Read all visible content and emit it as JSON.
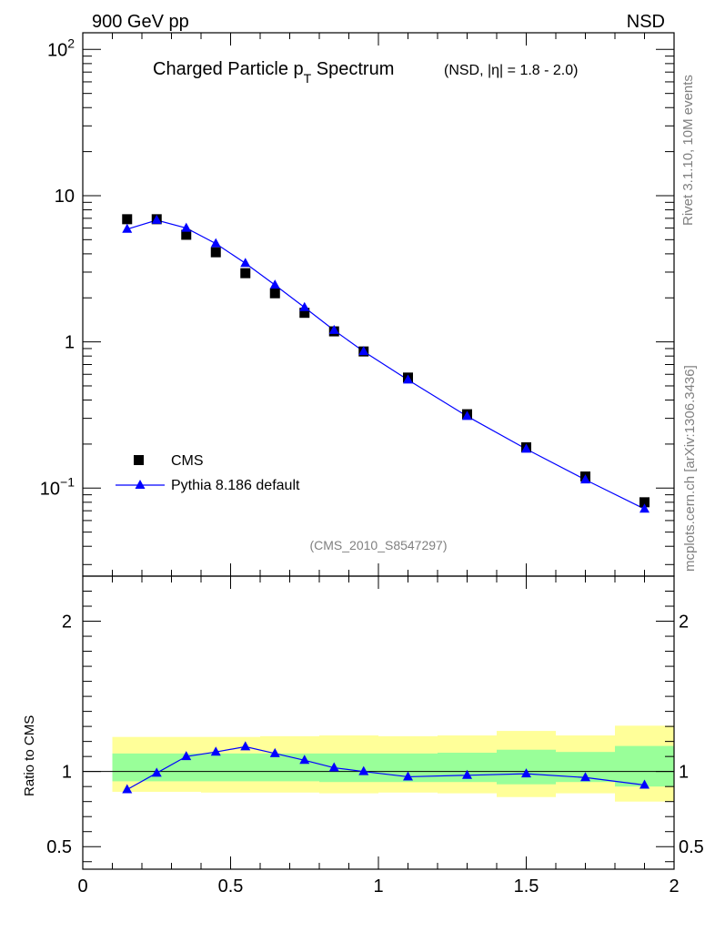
{
  "header": {
    "left_label": "900 GeV pp",
    "right_label": "NSD"
  },
  "side_labels": {
    "rivet": "Rivet 3.1.10,  10M events",
    "source": "mcplots.cern.ch [arXiv:1306.3436]"
  },
  "colors": {
    "mc_line": "#0000ff",
    "data_marker": "#000000",
    "band_inner": "#99ff99",
    "band_outer": "#ffff99"
  },
  "chart_data": [
    {
      "type": "scatter",
      "title_main": "Charged Particle p",
      "title_sub": "T",
      "title_rest": " Spectrum",
      "title_qualifier": "(NSD, |η| = 1.8 - 2.0)",
      "analysis_id": "(CMS_2010_S8547297)",
      "yscale": "log",
      "xlim": [
        0,
        2
      ],
      "ylim": [
        0.025,
        130
      ],
      "y_ticks": [
        {
          "value": 100,
          "label": "10",
          "sup": "2"
        },
        {
          "value": 10,
          "label": "10",
          "sup": ""
        },
        {
          "value": 1,
          "label": "1",
          "sup": ""
        },
        {
          "value": 0.1,
          "label": "10",
          "sup": "−1"
        }
      ],
      "legend": {
        "placement": "bottom-left",
        "entries": [
          "CMS",
          "Pythia 8.186 default"
        ]
      },
      "series": [
        {
          "name": "CMS",
          "marker": "square",
          "x": [
            0.15,
            0.25,
            0.35,
            0.45,
            0.55,
            0.65,
            0.75,
            0.85,
            0.95,
            1.1,
            1.3,
            1.5,
            1.7,
            1.9
          ],
          "y": [
            6.9,
            6.9,
            5.4,
            4.1,
            2.95,
            2.15,
            1.58,
            1.18,
            0.86,
            0.57,
            0.32,
            0.19,
            0.12,
            0.08
          ]
        },
        {
          "name": "Pythia 8.186 default",
          "marker": "triangle",
          "x": [
            0.15,
            0.25,
            0.35,
            0.45,
            0.55,
            0.65,
            0.75,
            0.85,
            0.95,
            1.1,
            1.3,
            1.5,
            1.7,
            1.9
          ],
          "y": [
            5.9,
            6.8,
            6.0,
            4.7,
            3.45,
            2.45,
            1.72,
            1.2,
            0.86,
            0.55,
            0.31,
            0.185,
            0.114,
            0.072
          ]
        }
      ]
    },
    {
      "type": "line",
      "ylabel": "Ratio to CMS",
      "xlim": [
        0,
        2
      ],
      "ylim": [
        0.35,
        2.3
      ],
      "x_ticks": [
        {
          "value": 0,
          "label": "0"
        },
        {
          "value": 0.5,
          "label": "0.5"
        },
        {
          "value": 1,
          "label": "1"
        },
        {
          "value": 1.5,
          "label": "1.5"
        },
        {
          "value": 2,
          "label": "2"
        }
      ],
      "y_ticks": [
        {
          "value": 2,
          "label": "2"
        },
        {
          "value": 1,
          "label": "1"
        },
        {
          "value": 0.5,
          "label": "0.5"
        }
      ],
      "uncertainty_bins": [
        {
          "x0": 0.1,
          "x1": 0.2,
          "inner": [
            0.935,
            1.12
          ],
          "outer": [
            0.865,
            1.23
          ]
        },
        {
          "x0": 0.2,
          "x1": 0.3,
          "inner": [
            0.935,
            1.12
          ],
          "outer": [
            0.865,
            1.23
          ]
        },
        {
          "x0": 0.3,
          "x1": 0.4,
          "inner": [
            0.935,
            1.12
          ],
          "outer": [
            0.865,
            1.23
          ]
        },
        {
          "x0": 0.4,
          "x1": 0.5,
          "inner": [
            0.935,
            1.12
          ],
          "outer": [
            0.86,
            1.23
          ]
        },
        {
          "x0": 0.5,
          "x1": 0.6,
          "inner": [
            0.935,
            1.12
          ],
          "outer": [
            0.86,
            1.23
          ]
        },
        {
          "x0": 0.6,
          "x1": 0.7,
          "inner": [
            0.935,
            1.12
          ],
          "outer": [
            0.86,
            1.235
          ]
        },
        {
          "x0": 0.7,
          "x1": 0.8,
          "inner": [
            0.935,
            1.12
          ],
          "outer": [
            0.86,
            1.235
          ]
        },
        {
          "x0": 0.8,
          "x1": 0.9,
          "inner": [
            0.93,
            1.12
          ],
          "outer": [
            0.855,
            1.24
          ]
        },
        {
          "x0": 0.9,
          "x1": 1.0,
          "inner": [
            0.93,
            1.12
          ],
          "outer": [
            0.855,
            1.24
          ]
        },
        {
          "x0": 1.0,
          "x1": 1.2,
          "inner": [
            0.93,
            1.12
          ],
          "outer": [
            0.86,
            1.235
          ]
        },
        {
          "x0": 1.2,
          "x1": 1.4,
          "inner": [
            0.93,
            1.125
          ],
          "outer": [
            0.855,
            1.24
          ]
        },
        {
          "x0": 1.4,
          "x1": 1.6,
          "inner": [
            0.915,
            1.145
          ],
          "outer": [
            0.83,
            1.27
          ]
        },
        {
          "x0": 1.6,
          "x1": 1.8,
          "inner": [
            0.93,
            1.13
          ],
          "outer": [
            0.855,
            1.24
          ]
        },
        {
          "x0": 1.8,
          "x1": 2.0,
          "inner": [
            0.9,
            1.17
          ],
          "outer": [
            0.8,
            1.305
          ]
        }
      ],
      "series": [
        {
          "name": "Pythia 8.186 default",
          "x": [
            0.15,
            0.25,
            0.35,
            0.45,
            0.55,
            0.65,
            0.75,
            0.85,
            0.95,
            1.1,
            1.3,
            1.5,
            1.7,
            1.9
          ],
          "y": [
            0.88,
            0.99,
            1.1,
            1.13,
            1.165,
            1.12,
            1.075,
            1.025,
            1.0,
            0.965,
            0.975,
            0.985,
            0.96,
            0.91
          ]
        }
      ]
    }
  ]
}
